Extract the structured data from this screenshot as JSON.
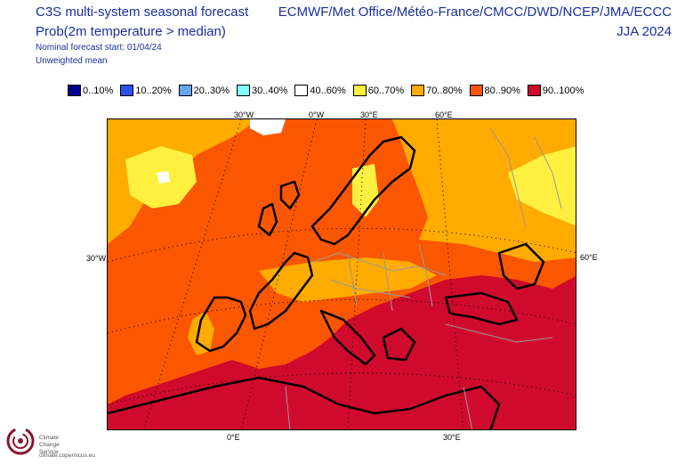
{
  "header": {
    "title_line1": "C3S multi-system seasonal forecast",
    "title_line2": "Prob(2m temperature > median)",
    "start": "Nominal forecast start: 01/04/24",
    "weighting": "Unweighted mean",
    "systems": "ECMWF/Met Office/Météo-France/CMCC/DWD/NCEP/JMA/ECCC",
    "period": "JJA 2024"
  },
  "legend": [
    {
      "label": "0..10%",
      "color": "#00008b"
    },
    {
      "label": "10..20%",
      "color": "#3050f0"
    },
    {
      "label": "20..30%",
      "color": "#66a8f0"
    },
    {
      "label": "30..40%",
      "color": "#80ffff"
    },
    {
      "label": "40..60%",
      "color": "#ffffff"
    },
    {
      "label": "60..70%",
      "color": "#fff040"
    },
    {
      "label": "70..80%",
      "color": "#ffab00"
    },
    {
      "label": "80..90%",
      "color": "#fb5600"
    },
    {
      "label": "90..100%",
      "color": "#d00a2c"
    }
  ],
  "axes": {
    "top_labels": [
      "30°W",
      "0°W",
      "30°E",
      "60°E"
    ],
    "left_label": "30°W",
    "right_label": "60°E",
    "bottom_labels": [
      "0°E",
      "30°E"
    ]
  },
  "logo": {
    "line1": "Climate",
    "line2": "Change Service",
    "url": "climate.copernicus.eu"
  }
}
